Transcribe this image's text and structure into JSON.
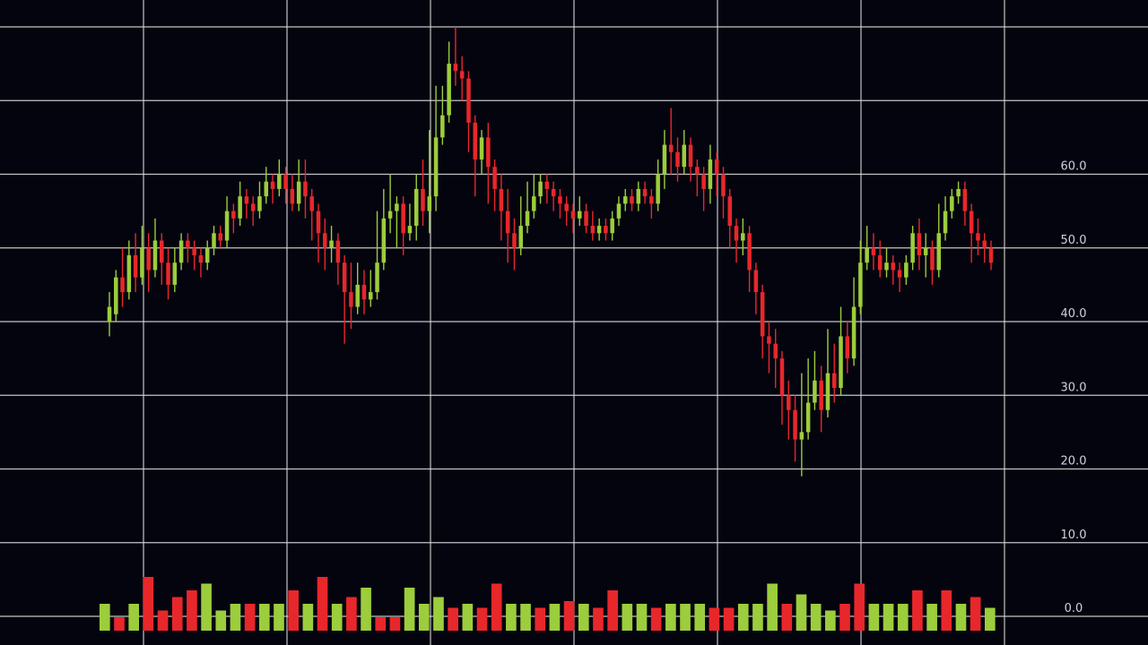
{
  "chart_data": {
    "type": "candlestick",
    "y_ticks": [
      "0.0",
      "10.0",
      "20.0",
      "30.0",
      "40.0",
      "50.0",
      "60.0"
    ],
    "ylim": [
      0,
      80
    ],
    "grid": true,
    "legend": "none",
    "colors": {
      "background": "#04040f",
      "grid": "#d7d9de",
      "up": "#9ccd3c",
      "down": "#e8272b",
      "label": "#cfd2dc"
    },
    "candles": [
      [
        40,
        42,
        38,
        44
      ],
      [
        41,
        46,
        40,
        47
      ],
      [
        46,
        44,
        42,
        50
      ],
      [
        44,
        49,
        43,
        51
      ],
      [
        49,
        46,
        44,
        52
      ],
      [
        46,
        50,
        45,
        53
      ],
      [
        50,
        47,
        44,
        52
      ],
      [
        47,
        51,
        46,
        54
      ],
      [
        51,
        48,
        45,
        52
      ],
      [
        48,
        45,
        43,
        50
      ],
      [
        45,
        48,
        44,
        50
      ],
      [
        48,
        51,
        47,
        52
      ],
      [
        51,
        50,
        48,
        52
      ],
      [
        50,
        49,
        47,
        51
      ],
      [
        49,
        48,
        46,
        50
      ],
      [
        48,
        50,
        47,
        51
      ],
      [
        50,
        52,
        49,
        53
      ],
      [
        52,
        51,
        50,
        53
      ],
      [
        51,
        55,
        50,
        57
      ],
      [
        55,
        54,
        52,
        56
      ],
      [
        54,
        57,
        53,
        59
      ],
      [
        57,
        56,
        54,
        58
      ],
      [
        56,
        55,
        53,
        57
      ],
      [
        55,
        57,
        54,
        59
      ],
      [
        57,
        59,
        56,
        61
      ],
      [
        59,
        58,
        56,
        60
      ],
      [
        58,
        60,
        57,
        62
      ],
      [
        60,
        58,
        56,
        61
      ],
      [
        58,
        56,
        55,
        60
      ],
      [
        56,
        59,
        55,
        62
      ],
      [
        59,
        57,
        54,
        62
      ],
      [
        57,
        55,
        51,
        58
      ],
      [
        55,
        52,
        48,
        56
      ],
      [
        52,
        50,
        47,
        54
      ],
      [
        50,
        51,
        48,
        53
      ],
      [
        51,
        48,
        45,
        52
      ],
      [
        48,
        44,
        37,
        49
      ],
      [
        44,
        42,
        39,
        48
      ],
      [
        42,
        45,
        41,
        48
      ],
      [
        45,
        43,
        41,
        47
      ],
      [
        43,
        44,
        42,
        47
      ],
      [
        44,
        48,
        43,
        55
      ],
      [
        48,
        54,
        47,
        58
      ],
      [
        54,
        55,
        52,
        60
      ],
      [
        55,
        56,
        50,
        57
      ],
      [
        56,
        52,
        49,
        57
      ],
      [
        52,
        53,
        51,
        56
      ],
      [
        53,
        58,
        51,
        60
      ],
      [
        58,
        55,
        53,
        62
      ],
      [
        55,
        57,
        52,
        66
      ],
      [
        57,
        65,
        55,
        72
      ],
      [
        65,
        68,
        64,
        72
      ],
      [
        68,
        75,
        67,
        78
      ],
      [
        75,
        74,
        72,
        80
      ],
      [
        74,
        73,
        70,
        76
      ],
      [
        73,
        67,
        63,
        74
      ],
      [
        67,
        62,
        57,
        68
      ],
      [
        62,
        65,
        60,
        66
      ],
      [
        65,
        61,
        56,
        67
      ],
      [
        61,
        58,
        55,
        62
      ],
      [
        58,
        55,
        51,
        60
      ],
      [
        55,
        52,
        48,
        58
      ],
      [
        52,
        50,
        47,
        54
      ],
      [
        50,
        53,
        49,
        57
      ],
      [
        53,
        55,
        52,
        59
      ],
      [
        55,
        57,
        54,
        60
      ],
      [
        57,
        59,
        56,
        60
      ],
      [
        59,
        58,
        56,
        60
      ],
      [
        58,
        57,
        55,
        59
      ],
      [
        57,
        56,
        54,
        58
      ],
      [
        56,
        55,
        53,
        57
      ],
      [
        55,
        54,
        52,
        56
      ],
      [
        54,
        55,
        53,
        57
      ],
      [
        55,
        53,
        52,
        56
      ],
      [
        53,
        52,
        51,
        55
      ],
      [
        52,
        53,
        51,
        54
      ],
      [
        53,
        52,
        51,
        54
      ],
      [
        52,
        54,
        51,
        55
      ],
      [
        54,
        56,
        53,
        57
      ],
      [
        56,
        57,
        55,
        58
      ],
      [
        57,
        56,
        55,
        58
      ],
      [
        56,
        58,
        55,
        59
      ],
      [
        58,
        57,
        56,
        59
      ],
      [
        57,
        56,
        54,
        58
      ],
      [
        56,
        60,
        55,
        62
      ],
      [
        60,
        64,
        58,
        66
      ],
      [
        64,
        63,
        60,
        69
      ],
      [
        63,
        61,
        59,
        65
      ],
      [
        61,
        64,
        60,
        66
      ],
      [
        64,
        61,
        59,
        65
      ],
      [
        61,
        60,
        57,
        62
      ],
      [
        60,
        58,
        55,
        61
      ],
      [
        58,
        62,
        56,
        64
      ],
      [
        62,
        60,
        57,
        63
      ],
      [
        60,
        57,
        54,
        61
      ],
      [
        57,
        53,
        50,
        58
      ],
      [
        53,
        51,
        48,
        54
      ],
      [
        51,
        52,
        49,
        54
      ],
      [
        52,
        47,
        44,
        53
      ],
      [
        47,
        44,
        41,
        48
      ],
      [
        44,
        38,
        35,
        45
      ],
      [
        38,
        37,
        33,
        40
      ],
      [
        37,
        35,
        31,
        39
      ],
      [
        35,
        30,
        26,
        36
      ],
      [
        30,
        28,
        24,
        32
      ],
      [
        28,
        24,
        21,
        30
      ],
      [
        24,
        25,
        19,
        33
      ],
      [
        25,
        29,
        24,
        35
      ],
      [
        29,
        32,
        28,
        36
      ],
      [
        32,
        28,
        25,
        34
      ],
      [
        28,
        33,
        27,
        39
      ],
      [
        33,
        31,
        29,
        37
      ],
      [
        31,
        38,
        30,
        42
      ],
      [
        38,
        35,
        33,
        40
      ],
      [
        35,
        42,
        34,
        46
      ],
      [
        42,
        48,
        41,
        51
      ],
      [
        48,
        50,
        47,
        53
      ],
      [
        50,
        49,
        47,
        52
      ],
      [
        49,
        47,
        46,
        51
      ],
      [
        47,
        48,
        46,
        50
      ],
      [
        48,
        47,
        45,
        49
      ],
      [
        47,
        46,
        44,
        48
      ],
      [
        46,
        48,
        45,
        49
      ],
      [
        48,
        52,
        47,
        53
      ],
      [
        52,
        49,
        47,
        54
      ],
      [
        49,
        50,
        46,
        52
      ],
      [
        50,
        47,
        45,
        51
      ],
      [
        47,
        52,
        46,
        56
      ],
      [
        52,
        55,
        51,
        57
      ],
      [
        55,
        57,
        54,
        58
      ],
      [
        57,
        58,
        56,
        59
      ],
      [
        58,
        55,
        53,
        59
      ],
      [
        55,
        52,
        48,
        56
      ],
      [
        52,
        51,
        49,
        54
      ],
      [
        51,
        50,
        48,
        52
      ],
      [
        50,
        48,
        47,
        51
      ]
    ],
    "volume": [
      [
        "up",
        2
      ],
      [
        "down",
        1
      ],
      [
        "up",
        2
      ],
      [
        "down",
        4
      ],
      [
        "down",
        1.5
      ],
      [
        "down",
        2.5
      ],
      [
        "down",
        3
      ],
      [
        "up",
        3.5
      ],
      [
        "up",
        1.5
      ],
      [
        "up",
        2
      ],
      [
        "down",
        2
      ],
      [
        "up",
        2
      ],
      [
        "up",
        2
      ],
      [
        "down",
        3
      ],
      [
        "up",
        2
      ],
      [
        "down",
        4
      ],
      [
        "up",
        2
      ],
      [
        "down",
        2.5
      ],
      [
        "up",
        3.2
      ],
      [
        "down",
        1
      ],
      [
        "down",
        1
      ],
      [
        "up",
        3.2
      ],
      [
        "up",
        2
      ],
      [
        "up",
        2.5
      ],
      [
        "down",
        1.7
      ],
      [
        "up",
        2
      ],
      [
        "down",
        1.7
      ],
      [
        "down",
        3.5
      ],
      [
        "up",
        2
      ],
      [
        "up",
        2
      ],
      [
        "down",
        1.7
      ],
      [
        "up",
        2
      ],
      [
        "down",
        2.2
      ],
      [
        "up",
        2
      ],
      [
        "down",
        1.7
      ],
      [
        "down",
        3
      ],
      [
        "up",
        2
      ],
      [
        "up",
        2
      ],
      [
        "down",
        1.7
      ],
      [
        "up",
        2
      ],
      [
        "up",
        2
      ],
      [
        "up",
        2
      ],
      [
        "down",
        1.7
      ],
      [
        "down",
        1.7
      ],
      [
        "up",
        2
      ],
      [
        "up",
        2
      ],
      [
        "up",
        3.5
      ],
      [
        "down",
        2
      ],
      [
        "up",
        2.7
      ],
      [
        "up",
        2
      ],
      [
        "up",
        1.5
      ],
      [
        "down",
        2
      ],
      [
        "down",
        3.5
      ],
      [
        "up",
        2
      ],
      [
        "up",
        2
      ],
      [
        "up",
        2
      ],
      [
        "down",
        3
      ],
      [
        "up",
        2
      ],
      [
        "down",
        3
      ],
      [
        "up",
        2
      ],
      [
        "down",
        2.5
      ],
      [
        "up",
        1.7
      ]
    ]
  }
}
